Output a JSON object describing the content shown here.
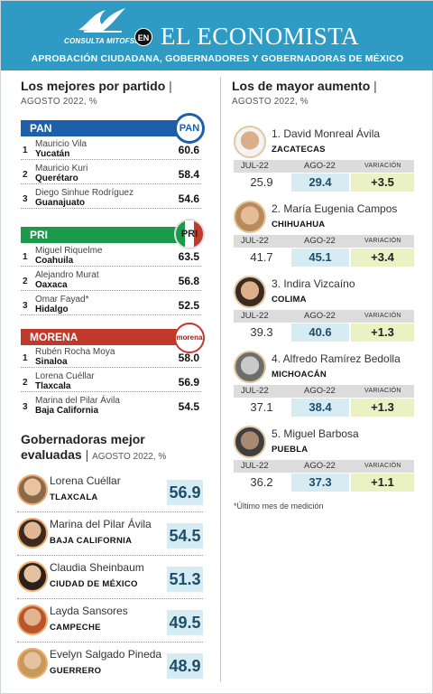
{
  "header": {
    "logo_text": "CONSULTA MITOFSKY",
    "en_badge": "EN",
    "brand": "EL ECONOMISTA",
    "subtitle": "APROBACIÓN CIUDADANA, GOBERNADORES Y GOBERNADORAS DE MÉXICO",
    "colors": {
      "header_bg": "#2f9bc4"
    }
  },
  "mejores_por_partido": {
    "title": "Los mejores por partido",
    "bar": "|",
    "subtitle": "AGOSTO 2022, %",
    "parties": [
      {
        "name": "PAN",
        "logo": "PAN",
        "color": "#1d5fa8",
        "rows": [
          {
            "rank": "1",
            "name": "Mauricio Vila",
            "state": "Yucatán",
            "score": "60.6"
          },
          {
            "rank": "2",
            "name": "Mauricio Kuri",
            "state": "Querétaro",
            "score": "58.4"
          },
          {
            "rank": "3",
            "name": "Diego Sinhue Rodríguez",
            "state": "Guanajuato",
            "score": "54.6"
          }
        ]
      },
      {
        "name": "PRI",
        "logo": "PRI",
        "color": "#1a9a4a",
        "rows": [
          {
            "rank": "1",
            "name": "Miguel Riquelme",
            "state": "Coahuila",
            "score": "63.5"
          },
          {
            "rank": "2",
            "name": "Alejandro Murat",
            "state": "Oaxaca",
            "score": "56.8"
          },
          {
            "rank": "3",
            "name": "Omar Fayad*",
            "state": "Hidalgo",
            "score": "52.5"
          }
        ]
      },
      {
        "name": "MORENA",
        "logo": "morena",
        "color": "#c0392b",
        "rows": [
          {
            "rank": "1",
            "name": "Rubén Rocha Moya",
            "state": "Sinaloa",
            "score": "58.0"
          },
          {
            "rank": "2",
            "name": "Lorena Cuéllar",
            "state": "Tlaxcala",
            "score": "56.9"
          },
          {
            "rank": "3",
            "name": "Marina del Pilar Ávila",
            "state": "Baja California",
            "score": "54.5"
          }
        ]
      }
    ]
  },
  "gobernadoras": {
    "title_line1": "Gobernadoras mejor",
    "title_line2": "evaluadas",
    "bar": "|",
    "subtitle": "AGOSTO 2022, %",
    "items": [
      {
        "name": "Lorena Cuéllar",
        "state": "TLAXCALA",
        "score": "56.9"
      },
      {
        "name": "Marina del Pilar Ávila",
        "state": "BAJA CALIFORNIA",
        "score": "54.5"
      },
      {
        "name": "Claudia Sheinbaum",
        "state": "CIUDAD DE MÉXICO",
        "score": "51.3"
      },
      {
        "name": "Layda Sansores",
        "state": "CAMPECHE",
        "score": "49.5"
      },
      {
        "name": "Evelyn Salgado Pineda",
        "state": "GUERRERO",
        "score": "48.9"
      }
    ]
  },
  "mayor_aumento": {
    "title": "Los de mayor aumento",
    "bar": "|",
    "subtitle": "AGOSTO 2022, %",
    "col_prev": "JUL-22",
    "col_curr": "AGO-22",
    "col_var": "VARIACIÓN",
    "items": [
      {
        "name": "1. David Monreal Ávila",
        "state": "ZACATECAS",
        "prev": "25.9",
        "curr": "29.4",
        "var": "+3.5"
      },
      {
        "name": "2. María Eugenia Campos",
        "state": "CHIHUAHUA",
        "prev": "41.7",
        "curr": "45.1",
        "var": "+3.4"
      },
      {
        "name": "3. Indira Vizcaíno",
        "state": "COLIMA",
        "prev": "39.3",
        "curr": "40.6",
        "var": "+1.3"
      },
      {
        "name": "4. Alfredo Ramírez Bedolla",
        "state": "MICHOACÁN",
        "prev": "37.1",
        "curr": "38.4",
        "var": "+1.3"
      },
      {
        "name": "5. Miguel Barbosa",
        "state": "PUEBLA",
        "prev": "36.2",
        "curr": "37.3",
        "var": "+1.1"
      }
    ],
    "footnote": "*Último mes de medición"
  }
}
